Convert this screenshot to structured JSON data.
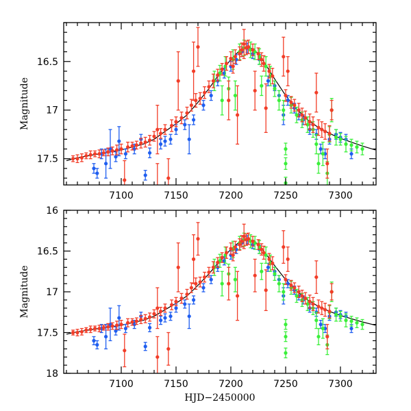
{
  "chart_data": [
    {
      "type": "scatter",
      "panel": "top",
      "title": "",
      "xlabel": "",
      "ylabel": "Magnitude",
      "xlim": [
        7047.5,
        7332.5
      ],
      "ylim": [
        17.77,
        16.1
      ],
      "y_inverted": true,
      "xticks_major": [
        7100,
        7150,
        7200,
        7250,
        7300
      ],
      "xtick_labels": [
        "7100",
        "7150",
        "7200",
        "7250",
        "7300"
      ],
      "yticks_major": [
        16.5,
        17,
        17.5
      ],
      "ytick_labels": [
        "16.5",
        "17",
        "17.5"
      ],
      "x_minor_step": 10,
      "y_minor_step": 0.1,
      "grid": false,
      "legend": "none"
    },
    {
      "type": "scatter",
      "panel": "bottom",
      "title": "",
      "xlabel": "HJD−2450000",
      "ylabel": "Magnitude",
      "xlim": [
        7047.5,
        7332.5
      ],
      "ylim": [
        18,
        16
      ],
      "y_inverted": true,
      "xticks_major": [
        7100,
        7150,
        7200,
        7250,
        7300
      ],
      "xtick_labels": [
        "7100",
        "7150",
        "7200",
        "7250",
        "7300"
      ],
      "yticks_major": [
        16,
        16.5,
        17,
        17.5,
        18
      ],
      "ytick_labels": [
        "16",
        "16.5",
        "17",
        "17.5",
        "18"
      ],
      "x_minor_step": 10,
      "y_minor_step": 0.1,
      "grid": false,
      "legend": "none"
    }
  ],
  "model_curve": {
    "name": "model",
    "color": "#000000",
    "x": [
      7050,
      7060,
      7070,
      7080,
      7090,
      7100,
      7110,
      7120,
      7130,
      7140,
      7150,
      7160,
      7170,
      7180,
      7190,
      7200,
      7205,
      7210,
      7215,
      7220,
      7225,
      7230,
      7240,
      7250,
      7260,
      7270,
      7280,
      7290,
      7300,
      7310,
      7320,
      7332
    ],
    "y": [
      17.52,
      17.49,
      17.47,
      17.45,
      17.43,
      17.41,
      17.38,
      17.35,
      17.3,
      17.22,
      17.14,
      17.05,
      16.92,
      16.78,
      16.62,
      16.48,
      16.42,
      16.37,
      16.35,
      16.37,
      16.42,
      16.5,
      16.68,
      16.85,
      16.99,
      17.1,
      17.18,
      17.24,
      17.29,
      17.33,
      17.37,
      17.41
    ]
  },
  "series": [
    {
      "name": "red",
      "color": "#f23d28",
      "points": [
        [
          7056,
          17.5,
          0.03
        ],
        [
          7060,
          17.5,
          0.04
        ],
        [
          7064,
          17.49,
          0.04
        ],
        [
          7068,
          17.47,
          0.03
        ],
        [
          7072,
          17.46,
          0.04
        ],
        [
          7076,
          17.45,
          0.03
        ],
        [
          7080,
          17.45,
          0.04
        ],
        [
          7084,
          17.44,
          0.03
        ],
        [
          7088,
          17.43,
          0.04
        ],
        [
          7092,
          17.42,
          0.04
        ],
        [
          7096,
          17.41,
          0.05
        ],
        [
          7100,
          17.4,
          0.05
        ],
        [
          7103,
          17.72,
          0.2
        ],
        [
          7106,
          17.38,
          0.05
        ],
        [
          7110,
          17.37,
          0.04
        ],
        [
          7114,
          17.36,
          0.04
        ],
        [
          7118,
          17.34,
          0.05
        ],
        [
          7122,
          17.33,
          0.05
        ],
        [
          7126,
          17.31,
          0.05
        ],
        [
          7130,
          17.27,
          0.05
        ],
        [
          7133,
          17.2,
          0.25
        ],
        [
          7133,
          17.8,
          0.25
        ],
        [
          7136,
          17.24,
          0.05
        ],
        [
          7140,
          17.2,
          0.05
        ],
        [
          7143,
          17.7,
          0.2
        ],
        [
          7146,
          17.16,
          0.06
        ],
        [
          7150,
          17.12,
          0.05
        ],
        [
          7152,
          16.7,
          0.3
        ],
        [
          7155,
          17.08,
          0.06
        ],
        [
          7160,
          17.03,
          0.06
        ],
        [
          7164,
          16.95,
          0.06
        ],
        [
          7166,
          16.6,
          0.3
        ],
        [
          7168,
          16.9,
          0.07
        ],
        [
          7170,
          16.35,
          0.2
        ],
        [
          7172,
          16.88,
          0.06
        ],
        [
          7176,
          16.82,
          0.06
        ],
        [
          7180,
          16.76,
          0.06
        ],
        [
          7184,
          16.7,
          0.07
        ],
        [
          7188,
          16.64,
          0.06
        ],
        [
          7192,
          16.58,
          0.06
        ],
        [
          7196,
          16.52,
          0.07
        ],
        [
          7198,
          16.9,
          0.2
        ],
        [
          7200,
          16.47,
          0.07
        ],
        [
          7202,
          16.55,
          0.07
        ],
        [
          7204,
          16.45,
          0.07
        ],
        [
          7206,
          17.05,
          0.3
        ],
        [
          7208,
          16.42,
          0.07
        ],
        [
          7210,
          16.38,
          0.07
        ],
        [
          7212,
          16.32,
          0.15
        ],
        [
          7214,
          16.36,
          0.07
        ],
        [
          7216,
          16.35,
          0.07
        ],
        [
          7220,
          16.38,
          0.06
        ],
        [
          7222,
          16.8,
          0.2
        ],
        [
          7225,
          16.42,
          0.06
        ],
        [
          7228,
          16.48,
          0.07
        ],
        [
          7230,
          16.52,
          0.08
        ],
        [
          7232,
          16.98,
          0.25
        ],
        [
          7235,
          16.6,
          0.07
        ],
        [
          7238,
          16.65,
          0.08
        ],
        [
          7248,
          16.45,
          0.2
        ],
        [
          7250,
          16.85,
          0.06
        ],
        [
          7252,
          16.6,
          0.15
        ],
        [
          7255,
          16.92,
          0.06
        ],
        [
          7258,
          16.95,
          0.06
        ],
        [
          7262,
          17.0,
          0.07
        ],
        [
          7265,
          17.05,
          0.07
        ],
        [
          7268,
          17.08,
          0.07
        ],
        [
          7272,
          17.12,
          0.08
        ],
        [
          7275,
          17.15,
          0.08
        ],
        [
          7278,
          16.82,
          0.2
        ],
        [
          7280,
          17.18,
          0.08
        ],
        [
          7283,
          17.2,
          0.08
        ],
        [
          7286,
          17.22,
          0.08
        ],
        [
          7288,
          17.55,
          0.15
        ],
        [
          7290,
          17.24,
          0.08
        ],
        [
          7292,
          17.0,
          0.1
        ]
      ]
    },
    {
      "name": "blue",
      "color": "#1f5ef0",
      "points": [
        [
          7075,
          17.6,
          0.05
        ],
        [
          7078,
          17.65,
          0.05
        ],
        [
          7082,
          17.45,
          0.05
        ],
        [
          7086,
          17.55,
          0.15
        ],
        [
          7090,
          17.4,
          0.2
        ],
        [
          7095,
          17.48,
          0.05
        ],
        [
          7098,
          17.32,
          0.15
        ],
        [
          7104,
          17.45,
          0.05
        ],
        [
          7112,
          17.4,
          0.05
        ],
        [
          7118,
          17.3,
          0.05
        ],
        [
          7122,
          17.67,
          0.05
        ],
        [
          7126,
          17.44,
          0.05
        ],
        [
          7136,
          17.35,
          0.05
        ],
        [
          7140,
          17.32,
          0.05
        ],
        [
          7145,
          17.3,
          0.05
        ],
        [
          7150,
          17.2,
          0.05
        ],
        [
          7158,
          17.15,
          0.05
        ],
        [
          7162,
          17.3,
          0.15
        ],
        [
          7166,
          17.1,
          0.05
        ],
        [
          7175,
          16.95,
          0.05
        ],
        [
          7182,
          16.85,
          0.05
        ],
        [
          7188,
          16.7,
          0.05
        ],
        [
          7194,
          16.62,
          0.05
        ],
        [
          7200,
          16.55,
          0.05
        ],
        [
          7205,
          16.48,
          0.05
        ],
        [
          7210,
          16.4,
          0.05
        ],
        [
          7215,
          16.36,
          0.05
        ],
        [
          7220,
          16.42,
          0.05
        ],
        [
          7226,
          16.48,
          0.05
        ],
        [
          7234,
          16.7,
          0.05
        ],
        [
          7240,
          16.75,
          0.05
        ],
        [
          7244,
          16.85,
          0.05
        ],
        [
          7248,
          17.05,
          0.1
        ],
        [
          7252,
          16.9,
          0.05
        ],
        [
          7258,
          16.98,
          0.05
        ],
        [
          7262,
          17.05,
          0.05
        ],
        [
          7266,
          17.1,
          0.05
        ],
        [
          7272,
          17.2,
          0.05
        ],
        [
          7278,
          17.25,
          0.05
        ],
        [
          7282,
          17.4,
          0.05
        ],
        [
          7286,
          17.45,
          0.05
        ],
        [
          7290,
          17.3,
          0.05
        ],
        [
          7296,
          17.25,
          0.05
        ],
        [
          7300,
          17.28,
          0.05
        ],
        [
          7305,
          17.3,
          0.05
        ],
        [
          7310,
          17.45,
          0.05
        ]
      ]
    },
    {
      "name": "green",
      "color": "#3aef3a",
      "points": [
        [
          7185,
          16.7,
          0.1
        ],
        [
          7190,
          16.62,
          0.08
        ],
        [
          7192,
          16.9,
          0.15
        ],
        [
          7195,
          16.55,
          0.1
        ],
        [
          7198,
          16.78,
          0.12
        ],
        [
          7202,
          16.48,
          0.1
        ],
        [
          7204,
          16.85,
          0.15
        ],
        [
          7208,
          16.4,
          0.08
        ],
        [
          7212,
          16.36,
          0.08
        ],
        [
          7218,
          16.38,
          0.08
        ],
        [
          7222,
          16.4,
          0.08
        ],
        [
          7226,
          16.45,
          0.08
        ],
        [
          7228,
          16.75,
          0.1
        ],
        [
          7232,
          16.55,
          0.1
        ],
        [
          7236,
          16.65,
          0.1
        ],
        [
          7240,
          16.78,
          0.08
        ],
        [
          7244,
          16.9,
          0.1
        ],
        [
          7248,
          17.0,
          0.1
        ],
        [
          7250,
          17.4,
          0.06
        ],
        [
          7250,
          17.55,
          0.06
        ],
        [
          7250,
          17.75,
          0.06
        ],
        [
          7255,
          16.95,
          0.08
        ],
        [
          7260,
          17.05,
          0.08
        ],
        [
          7265,
          17.1,
          0.08
        ],
        [
          7270,
          17.15,
          0.08
        ],
        [
          7275,
          17.2,
          0.08
        ],
        [
          7278,
          17.35,
          0.1
        ],
        [
          7280,
          17.55,
          0.1
        ],
        [
          7284,
          17.45,
          0.12
        ],
        [
          7288,
          17.65,
          0.12
        ],
        [
          7290,
          17.25,
          0.08
        ],
        [
          7292,
          17.0,
          0.12
        ],
        [
          7296,
          17.28,
          0.08
        ],
        [
          7300,
          17.3,
          0.06
        ],
        [
          7305,
          17.35,
          0.08
        ],
        [
          7310,
          17.36,
          0.06
        ],
        [
          7315,
          17.38,
          0.06
        ],
        [
          7320,
          17.4,
          0.06
        ]
      ]
    }
  ]
}
